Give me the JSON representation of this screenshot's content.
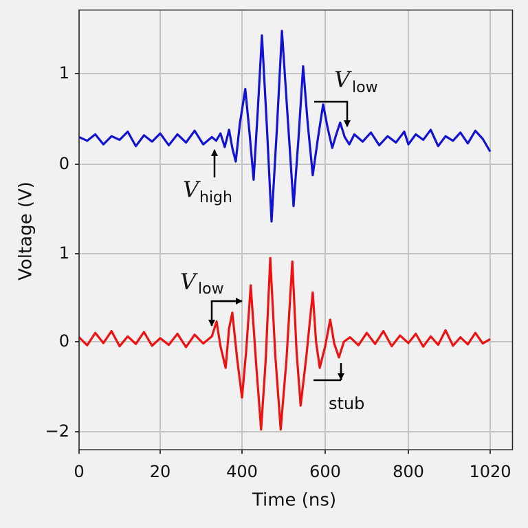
{
  "chart_data": [
    {
      "type": "line",
      "ylabel": "Voltage (V)",
      "xlim": [
        0,
        1080
      ],
      "xticks": [
        0,
        20,
        400,
        600,
        800,
        1020
      ],
      "ylim": [
        -0.7,
        1.7
      ],
      "yticks": [
        0,
        1
      ],
      "grid": true,
      "x": [
        0,
        2,
        4,
        6,
        8,
        10,
        12,
        14,
        16,
        18,
        20,
        60,
        100,
        140,
        180,
        220,
        260,
        280,
        300,
        320,
        340,
        355,
        371,
        390,
        408,
        418,
        428,
        438,
        448,
        460,
        471,
        484,
        496,
        510,
        524,
        536,
        547,
        558,
        570,
        583,
        595,
        606,
        617,
        626,
        636,
        647,
        658,
        670,
        690,
        710,
        730,
        750,
        770,
        790,
        800,
        820,
        840,
        860,
        880,
        900,
        920,
        940,
        960,
        980,
        1000,
        1020
      ],
      "series": [
        {
          "color": "#1212d2",
          "values": [
            0.3,
            0.26,
            0.33,
            0.22,
            0.31,
            0.27,
            0.36,
            0.2,
            0.32,
            0.25,
            0.34,
            0.21,
            0.33,
            0.24,
            0.37,
            0.22,
            0.3,
            0.26,
            0.34,
            0.19,
            0.38,
            0.18,
            0.03,
            0.45,
            0.83,
            0.35,
            -0.17,
            0.6,
            1.42,
            0.4,
            -0.63,
            0.4,
            1.47,
            0.5,
            -0.46,
            0.3,
            1.08,
            0.45,
            -0.12,
            0.3,
            0.66,
            0.4,
            0.18,
            0.32,
            0.46,
            0.3,
            0.22,
            0.33,
            0.25,
            0.35,
            0.21,
            0.31,
            0.24,
            0.36,
            0.22,
            0.33,
            0.27,
            0.38,
            0.2,
            0.31,
            0.26,
            0.35,
            0.23,
            0.37,
            0.28,
            0.14
          ]
        }
      ],
      "annotations": [
        {
          "text": "V",
          "sub": "high"
        },
        {
          "text": "V",
          "sub": "low"
        }
      ]
    },
    {
      "type": "line",
      "xlabel": "Time (ns)",
      "xlim": [
        0,
        1080
      ],
      "xticks": [
        0,
        20,
        400,
        600,
        800,
        1020
      ],
      "ylim": [
        -2.4,
        1.3
      ],
      "yticks": [
        {
          "value": -2,
          "label": "−2"
        },
        0,
        1
      ],
      "grid": true,
      "x": [
        0,
        2,
        4,
        6,
        8,
        10,
        12,
        14,
        16,
        18,
        20,
        60,
        100,
        140,
        180,
        220,
        260,
        282,
        300,
        324,
        340,
        355,
        378,
        400,
        410,
        421,
        434,
        446,
        457,
        468,
        480,
        493,
        507,
        521,
        531,
        541,
        555,
        570,
        578,
        587,
        600,
        612,
        622,
        633,
        645,
        660,
        680,
        700,
        720,
        740,
        760,
        780,
        800,
        820,
        840,
        860,
        880,
        900,
        920,
        940,
        960,
        980,
        1000,
        1020
      ],
      "series": [
        {
          "color": "#ee1111",
          "values": [
            0.05,
            -0.08,
            0.1,
            -0.03,
            0.12,
            -0.1,
            0.06,
            -0.05,
            0.11,
            -0.09,
            0.04,
            -0.07,
            0.09,
            -0.12,
            0.08,
            -0.04,
            0.06,
            0.23,
            -0.1,
            -0.58,
            0.15,
            0.33,
            -0.4,
            -1.24,
            -0.2,
            0.64,
            -0.5,
            -1.95,
            -0.4,
            0.95,
            -0.3,
            -1.95,
            -0.4,
            0.91,
            -0.2,
            -1.42,
            -0.3,
            0.56,
            0.0,
            -0.58,
            -0.1,
            0.25,
            -0.05,
            -0.35,
            0.0,
            0.05,
            -0.08,
            0.1,
            -0.05,
            0.12,
            -0.1,
            0.07,
            -0.03,
            0.09,
            -0.11,
            0.06,
            -0.07,
            0.13,
            -0.09,
            0.05,
            -0.06,
            0.1,
            -0.04,
            0.03
          ]
        }
      ],
      "annotations": [
        {
          "text": "V",
          "sub": "low"
        },
        {
          "text": "stub"
        }
      ]
    }
  ]
}
